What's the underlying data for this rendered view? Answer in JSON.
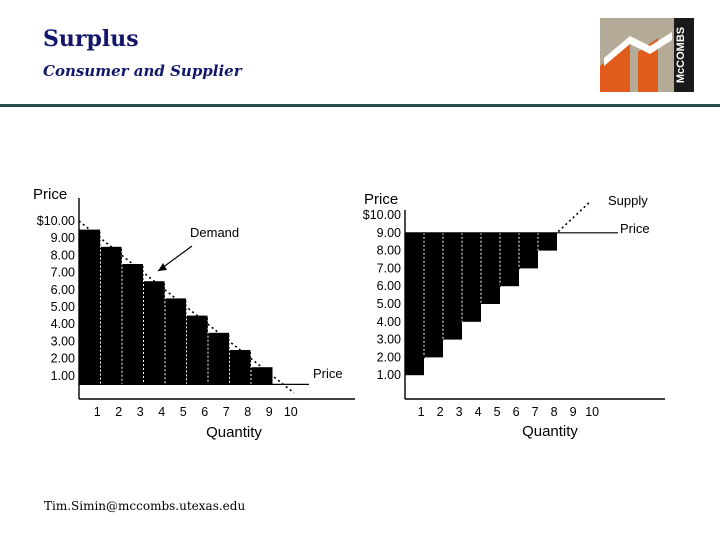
{
  "header": {
    "title": "Surplus",
    "subtitle": "Consumer and Supplier"
  },
  "logo": {
    "text": "McCOMBS",
    "colors": [
      "#b3aa98",
      "#e05b1c",
      "#ffffff",
      "#1a1a1a"
    ]
  },
  "footer": {
    "email": "Tim.Simin@mccombs.utexas.edu"
  },
  "colors": {
    "title": "#13176b",
    "bars": "#000000",
    "axis": "#000000"
  },
  "chart_data": [
    {
      "type": "bar",
      "name": "consumer-surplus",
      "ylabel": "Price",
      "xlabel": "Quantity",
      "y_ticks": [
        "$10.00",
        "9.00",
        "8.00",
        "7.00",
        "6.00",
        "5.00",
        "4.00",
        "3.00",
        "2.00",
        "1.00"
      ],
      "x_ticks": [
        "1",
        "2",
        "3",
        "4",
        "5",
        "6",
        "7",
        "8",
        "9",
        "10"
      ],
      "curve_label": "Demand",
      "price_label": "Price",
      "price_level": 0.5,
      "bars": [
        9,
        8,
        7,
        6,
        5,
        4,
        3,
        2,
        1
      ],
      "curve": {
        "from": [
          0,
          10
        ],
        "to": [
          10,
          0
        ]
      },
      "xlim": [
        0,
        10
      ],
      "ylim": [
        0,
        10.5
      ]
    },
    {
      "type": "bar",
      "name": "producer-surplus",
      "ylabel": "Price",
      "xlabel": "Quantity",
      "y_ticks": [
        "$10.00",
        "9.00",
        "8.00",
        "7.00",
        "6.00",
        "5.00",
        "4.00",
        "3.00",
        "2.00",
        "1.00"
      ],
      "x_ticks": [
        "1",
        "2",
        "3",
        "4",
        "5",
        "6",
        "7",
        "8",
        "9",
        "10"
      ],
      "curve_label": "Supply",
      "price_label": "Price",
      "price_level": 9,
      "bars": [
        1,
        2,
        3,
        4,
        5,
        6,
        7,
        8,
        9
      ],
      "curve": {
        "from": [
          0,
          1
        ],
        "to": [
          10,
          11
        ]
      },
      "xlim": [
        0,
        10
      ],
      "ylim": [
        0,
        10.5
      ]
    }
  ]
}
